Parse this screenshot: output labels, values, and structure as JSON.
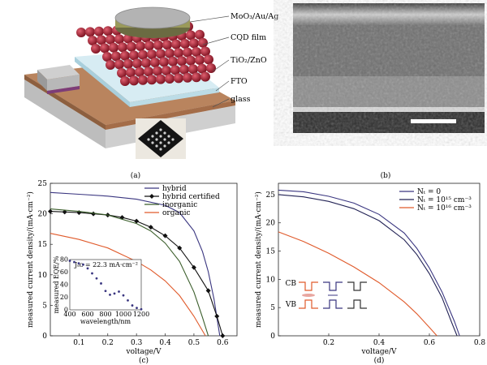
{
  "panel_a": {
    "caption": "(a)",
    "layer_labels": [
      {
        "key": "mo",
        "text": "MoO₃/Au/Ag"
      },
      {
        "key": "cqd",
        "text": "CQD film"
      },
      {
        "key": "tio",
        "text": "TiO₂/ZnO"
      },
      {
        "key": "fto",
        "text": "FTO"
      },
      {
        "key": "glass",
        "text": "glass"
      }
    ]
  },
  "panel_b": {
    "caption": "(b)"
  },
  "chart_data": [
    {
      "panel": "(c)",
      "type": "line",
      "xlabel": "voltage/V",
      "ylabel": "measured current density/(mA·cm⁻²)",
      "xlim": [
        0,
        0.65
      ],
      "ylim": [
        0,
        25
      ],
      "xticks": [
        "0.1",
        "0.2",
        "0.3",
        "0.4",
        "0.5",
        "0.6"
      ],
      "yticks": [
        "0",
        "5",
        "10",
        "15",
        "20",
        "25"
      ],
      "legend_position": "top-right",
      "series": [
        {
          "name": "hybrid",
          "color": "#3a3680",
          "marker": "none",
          "x": [
            0.0,
            0.1,
            0.2,
            0.3,
            0.4,
            0.45,
            0.5,
            0.53,
            0.55,
            0.57,
            0.58,
            0.59
          ],
          "y": [
            23.5,
            23.2,
            22.9,
            22.4,
            21.4,
            20.2,
            17.2,
            13.8,
            10.5,
            6.0,
            3.0,
            0.0
          ]
        },
        {
          "name": "hybrid certified",
          "color": "#111111",
          "marker": "diamond",
          "x": [
            0.0,
            0.05,
            0.1,
            0.15,
            0.2,
            0.25,
            0.3,
            0.35,
            0.4,
            0.45,
            0.5,
            0.55,
            0.58,
            0.6
          ],
          "y": [
            20.4,
            20.3,
            20.2,
            20.0,
            19.8,
            19.4,
            18.8,
            17.8,
            16.4,
            14.4,
            11.2,
            7.4,
            3.2,
            0.0
          ]
        },
        {
          "name": "inorganic",
          "color": "#3b5e2b",
          "marker": "none",
          "x": [
            0.0,
            0.1,
            0.2,
            0.3,
            0.35,
            0.4,
            0.45,
            0.5,
            0.53,
            0.55
          ],
          "y": [
            20.8,
            20.4,
            19.8,
            18.4,
            17.2,
            15.2,
            12.2,
            7.2,
            3.0,
            0.0
          ]
        },
        {
          "name": "organic",
          "color": "#e05a2b",
          "marker": "none",
          "x": [
            0.0,
            0.1,
            0.2,
            0.3,
            0.35,
            0.4,
            0.45,
            0.5,
            0.54
          ],
          "y": [
            16.8,
            15.8,
            14.4,
            12.2,
            10.8,
            9.0,
            6.6,
            3.2,
            0.0
          ]
        }
      ],
      "inset": {
        "label": "Jₛᴄ = 22.3 mA·cm⁻²",
        "xlabel": "wavelength/nm",
        "ylabel": "measured EQE/%",
        "xlim": [
          400,
          1200
        ],
        "ylim": [
          0,
          80
        ],
        "xticks": [
          "400",
          "600",
          "800",
          "1000",
          "1200"
        ],
        "yticks": [
          "0",
          "20",
          "40",
          "60",
          "80"
        ],
        "x": [
          400,
          450,
          500,
          550,
          600,
          650,
          700,
          750,
          800,
          850,
          900,
          950,
          1000,
          1050,
          1100,
          1150,
          1200
        ],
        "y": [
          78,
          76,
          74,
          72,
          66,
          58,
          50,
          42,
          30,
          24,
          26,
          29,
          23,
          15,
          7,
          3,
          1
        ]
      }
    },
    {
      "panel": "(d)",
      "type": "line",
      "xlabel": "voltage/V",
      "ylabel": "measured current density/(mA·cm⁻²)",
      "xlim": [
        0,
        0.8
      ],
      "ylim": [
        0,
        27
      ],
      "xticks": [
        "0.2",
        "0.4",
        "0.6",
        "0.8"
      ],
      "yticks": [
        "0",
        "5",
        "10",
        "15",
        "20",
        "25"
      ],
      "legend_position": "top-right",
      "series": [
        {
          "name": "Nₜ = 0",
          "color": "#3a3680",
          "x": [
            0.0,
            0.1,
            0.2,
            0.3,
            0.4,
            0.5,
            0.55,
            0.6,
            0.65,
            0.7,
            0.72
          ],
          "y": [
            25.8,
            25.5,
            24.7,
            23.5,
            21.5,
            18.2,
            15.5,
            12.0,
            7.8,
            2.5,
            0.0
          ]
        },
        {
          "name": "Nₜ = 10¹⁵ cm⁻³",
          "color": "#222255",
          "x": [
            0.0,
            0.1,
            0.2,
            0.3,
            0.4,
            0.5,
            0.55,
            0.6,
            0.65,
            0.69,
            0.71
          ],
          "y": [
            25.0,
            24.6,
            23.8,
            22.5,
            20.4,
            17.0,
            14.4,
            11.0,
            6.8,
            2.2,
            0.0
          ]
        },
        {
          "name": "Nₜ = 10¹⁶ cm⁻³",
          "color": "#e05a2b",
          "x": [
            0.0,
            0.1,
            0.2,
            0.3,
            0.4,
            0.5,
            0.55,
            0.6,
            0.63
          ],
          "y": [
            18.4,
            16.7,
            14.6,
            12.2,
            9.4,
            6.0,
            3.9,
            1.5,
            0.0
          ]
        }
      ],
      "band_labels": [
        "CB",
        "VB"
      ]
    }
  ]
}
